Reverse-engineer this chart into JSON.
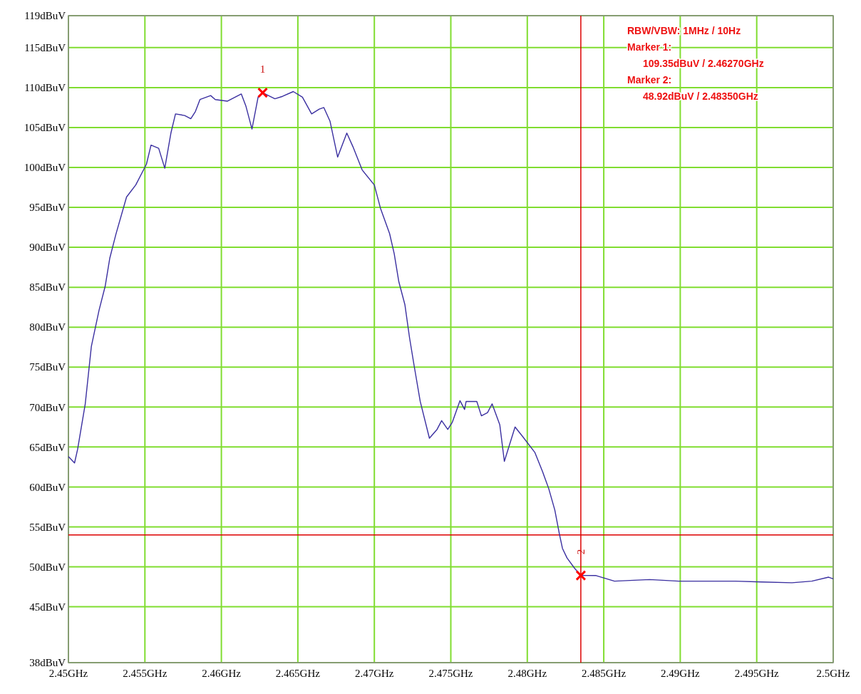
{
  "chart_data": {
    "type": "line",
    "xlim": [
      2.45,
      2.5
    ],
    "ylim": [
      38,
      119
    ],
    "xticks": [
      {
        "value": 2.45,
        "label": "2.45GHz"
      },
      {
        "value": 2.455,
        "label": "2.455GHz"
      },
      {
        "value": 2.46,
        "label": "2.46GHz"
      },
      {
        "value": 2.465,
        "label": "2.465GHz"
      },
      {
        "value": 2.47,
        "label": "2.47GHz"
      },
      {
        "value": 2.475,
        "label": "2.475GHz"
      },
      {
        "value": 2.48,
        "label": "2.48GHz"
      },
      {
        "value": 2.485,
        "label": "2.485GHz"
      },
      {
        "value": 2.49,
        "label": "2.49GHz"
      },
      {
        "value": 2.495,
        "label": "2.495GHz"
      },
      {
        "value": 2.5,
        "label": "2.5GHz"
      }
    ],
    "yticks": [
      {
        "value": 38,
        "label": "38dBuV"
      },
      {
        "value": 45,
        "label": "45dBuV"
      },
      {
        "value": 50,
        "label": "50dBuV"
      },
      {
        "value": 55,
        "label": "55dBuV"
      },
      {
        "value": 60,
        "label": "60dBuV"
      },
      {
        "value": 65,
        "label": "65dBuV"
      },
      {
        "value": 70,
        "label": "70dBuV"
      },
      {
        "value": 75,
        "label": "75dBuV"
      },
      {
        "value": 80,
        "label": "80dBuV"
      },
      {
        "value": 85,
        "label": "85dBuV"
      },
      {
        "value": 90,
        "label": "90dBuV"
      },
      {
        "value": 95,
        "label": "95dBuV"
      },
      {
        "value": 100,
        "label": "100dBuV"
      },
      {
        "value": 105,
        "label": "105dBuV"
      },
      {
        "value": 110,
        "label": "110dBuV"
      },
      {
        "value": 115,
        "label": "115dBuV"
      },
      {
        "value": 119,
        "label": "119dBuV"
      }
    ],
    "grid": true,
    "series": [
      {
        "type": "line",
        "color": "#3a2fa0",
        "marker": "none",
        "line_style": "solid",
        "x": [
          2.45,
          2.4504,
          2.4506,
          2.4511,
          2.4515,
          2.452,
          2.4524,
          2.4527,
          2.4531,
          2.4538,
          2.4544,
          2.4551,
          2.4554,
          2.4559,
          2.4563,
          2.4567,
          2.457,
          2.4576,
          2.458,
          2.4583,
          2.4586,
          2.4593,
          2.4596,
          2.4604,
          2.4613,
          2.4616,
          2.462,
          2.4624,
          2.4627,
          2.4635,
          2.464,
          2.4647,
          2.4653,
          2.4659,
          2.4664,
          2.4667,
          2.4671,
          2.4676,
          2.4682,
          2.4686,
          2.4692,
          2.47,
          2.4704,
          2.471,
          2.4713,
          2.4716,
          2.472,
          2.4723,
          2.4726,
          2.473,
          2.4736,
          2.4741,
          2.4744,
          2.4748,
          2.4751,
          2.4756,
          2.4759,
          2.476,
          2.4767,
          2.477,
          2.4774,
          2.4777,
          2.4782,
          2.4785,
          2.4792,
          2.4797,
          2.4805,
          2.481,
          2.4814,
          2.4818,
          2.4821,
          2.4823,
          2.4826,
          2.4831,
          2.4835,
          2.4845,
          2.4857,
          2.488,
          2.4899,
          2.4936,
          2.4953,
          2.4973,
          2.4986,
          2.4997,
          2.5
        ],
        "values": [
          63.8,
          63.0,
          64.7,
          70.4,
          77.6,
          82.1,
          85.1,
          88.6,
          91.6,
          96.3,
          97.8,
          100.4,
          102.8,
          102.4,
          99.9,
          104.3,
          106.7,
          106.5,
          106.1,
          107.0,
          108.5,
          109.0,
          108.5,
          108.3,
          109.2,
          107.7,
          104.8,
          108.8,
          109.35,
          108.6,
          108.9,
          109.5,
          108.8,
          106.7,
          107.3,
          107.5,
          105.8,
          101.3,
          104.3,
          102.6,
          99.7,
          97.8,
          94.9,
          91.7,
          89.2,
          85.7,
          82.8,
          78.7,
          75.2,
          70.7,
          66.1,
          67.2,
          68.3,
          67.2,
          68.1,
          70.8,
          69.7,
          70.7,
          70.7,
          68.9,
          69.3,
          70.4,
          67.8,
          63.2,
          67.5,
          66.3,
          64.3,
          61.9,
          59.8,
          57.1,
          54.1,
          52.3,
          51.1,
          49.8,
          48.92,
          48.9,
          48.2,
          48.4,
          48.2,
          48.2,
          48.1,
          48.0,
          48.2,
          48.7,
          48.5
        ]
      },
      {
        "type": "scatter",
        "color": "#ff0000",
        "marker": "cross",
        "x": [
          2.4627,
          2.4835
        ],
        "values": [
          109.35,
          48.92
        ]
      }
    ],
    "ref_lines": [
      {
        "axis": "y",
        "value": 54,
        "color": "#dd0000"
      },
      {
        "axis": "x",
        "value": 2.4835,
        "color": "#dd0000"
      }
    ],
    "annotations": [
      "RBW/VBW: 1MHz / 10Hz",
      "Marker 1:",
      "109.35dBuV / 2.46270GHz",
      "Marker 2:",
      "48.92dBuV / 2.48350GHz",
      {
        "text": "1",
        "x": 2.4627,
        "y": 109.35
      },
      {
        "text": "2",
        "x": 2.4835,
        "y": 48.92
      }
    ]
  }
}
